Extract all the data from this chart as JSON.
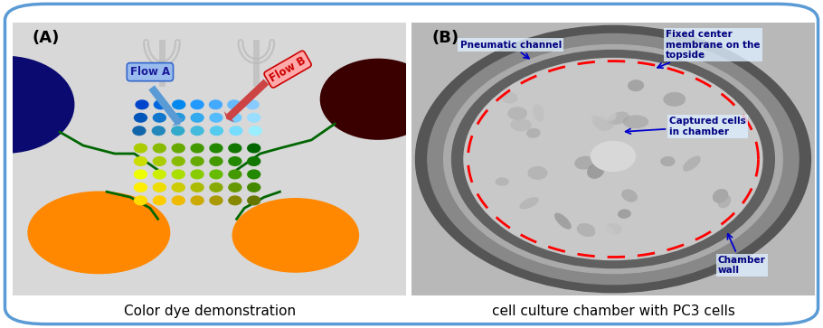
{
  "fig_width": 9.1,
  "fig_height": 3.63,
  "dpi": 100,
  "background_color": "#ffffff",
  "border_color": "#5b9bd5",
  "border_linewidth": 2.5,
  "panel_A_label": "(A)",
  "panel_B_label": "(B)",
  "caption_A": "Color dye demonstration",
  "caption_B": "cell culture chamber with PC3 cells",
  "caption_fontsize": 11,
  "label_fontsize": 13,
  "flow_A_text": "Flow A",
  "flow_B_text": "Flow B",
  "panel_A_bg": "#e8e8e8",
  "panel_B_bg": "#c8c8c8"
}
